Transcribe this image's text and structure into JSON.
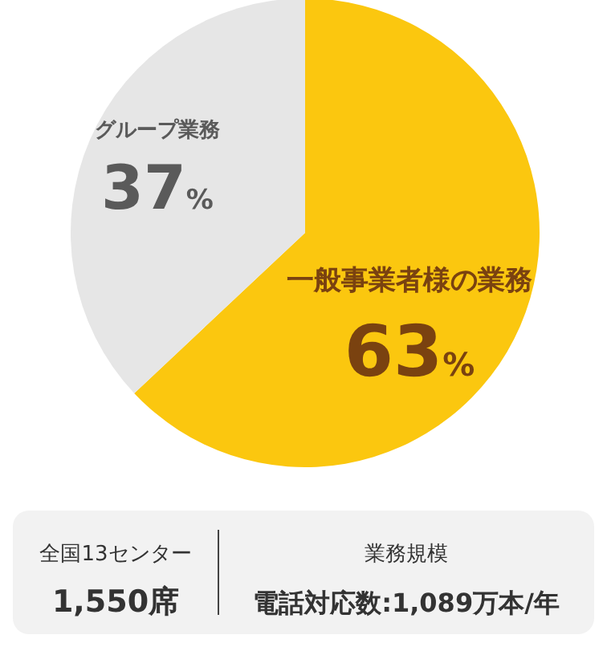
{
  "chart_data": {
    "type": "pie",
    "categories": [
      "一般事業者様の業務",
      "グループ業務"
    ],
    "values": [
      63,
      37
    ],
    "colors": [
      "#fbc70f",
      "#e6e6e6"
    ],
    "value_labels": [
      "63%",
      "37%"
    ],
    "annotations": [
      "全国13センター",
      "1,550席",
      "業務規模",
      "電話対応数:1,089万本/年"
    ]
  }
}
